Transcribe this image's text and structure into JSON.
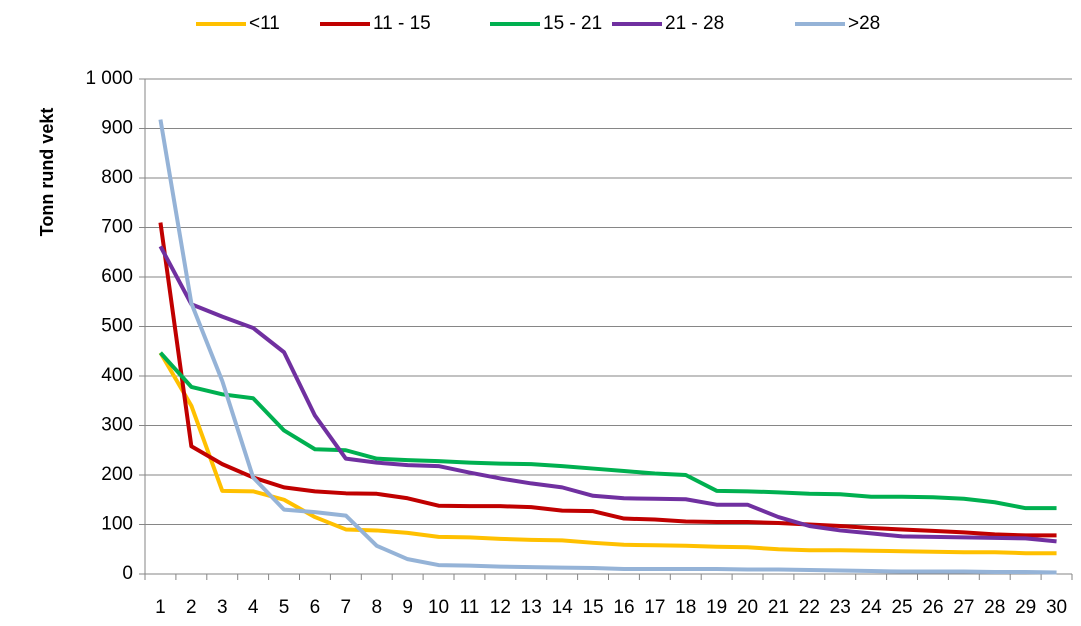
{
  "chart_data": {
    "type": "line",
    "y_label": "Tonn rund vekt",
    "categories": [
      "1",
      "2",
      "3",
      "4",
      "5",
      "6",
      "7",
      "8",
      "9",
      "10",
      "11",
      "12",
      "13",
      "14",
      "15",
      "16",
      "17",
      "18",
      "19",
      "20",
      "21",
      "22",
      "23",
      "24",
      "25",
      "26",
      "27",
      "28",
      "29",
      "30"
    ],
    "series": [
      {
        "name": "<11",
        "color": "#ffc000",
        "values": [
          447,
          340,
          168,
          167,
          150,
          115,
          90,
          88,
          83,
          75,
          74,
          71,
          69,
          68,
          63,
          59,
          58,
          57,
          55,
          54,
          50,
          48,
          48,
          47,
          46,
          45,
          44,
          44,
          42,
          42
        ]
      },
      {
        "name": "11 - 15",
        "color": "#c00000",
        "values": [
          710,
          258,
          222,
          195,
          175,
          167,
          163,
          162,
          153,
          138,
          137,
          137,
          135,
          128,
          127,
          112,
          110,
          106,
          105,
          105,
          103,
          100,
          97,
          93,
          90,
          87,
          84,
          80,
          78,
          78
        ]
      },
      {
        "name": "15 - 21",
        "color": "#00b050",
        "values": [
          447,
          378,
          363,
          355,
          290,
          252,
          250,
          233,
          230,
          228,
          225,
          223,
          222,
          218,
          213,
          208,
          203,
          200,
          168,
          167,
          165,
          162,
          161,
          156,
          156,
          155,
          152,
          145,
          133,
          133
        ]
      },
      {
        "name": "21 - 28",
        "color": "#7030a0",
        "values": [
          662,
          545,
          520,
          497,
          448,
          320,
          233,
          225,
          220,
          218,
          205,
          193,
          183,
          175,
          158,
          153,
          152,
          151,
          140,
          140,
          115,
          97,
          88,
          82,
          76,
          75,
          74,
          73,
          72,
          66
        ]
      },
      {
        "name": ">28",
        "color": "#95b3d7",
        "values": [
          918,
          547,
          390,
          195,
          130,
          125,
          118,
          57,
          30,
          18,
          17,
          15,
          14,
          13,
          12,
          10,
          10,
          10,
          10,
          9,
          9,
          8,
          7,
          6,
          5,
          5,
          5,
          4,
          4,
          3
        ]
      }
    ],
    "ylim": [
      0,
      1000
    ],
    "yticks": [
      0,
      100,
      200,
      300,
      400,
      500,
      600,
      700,
      800,
      900,
      {
        "value": 1000,
        "label": "1 000"
      }
    ],
    "grid": true,
    "legend": "top"
  }
}
